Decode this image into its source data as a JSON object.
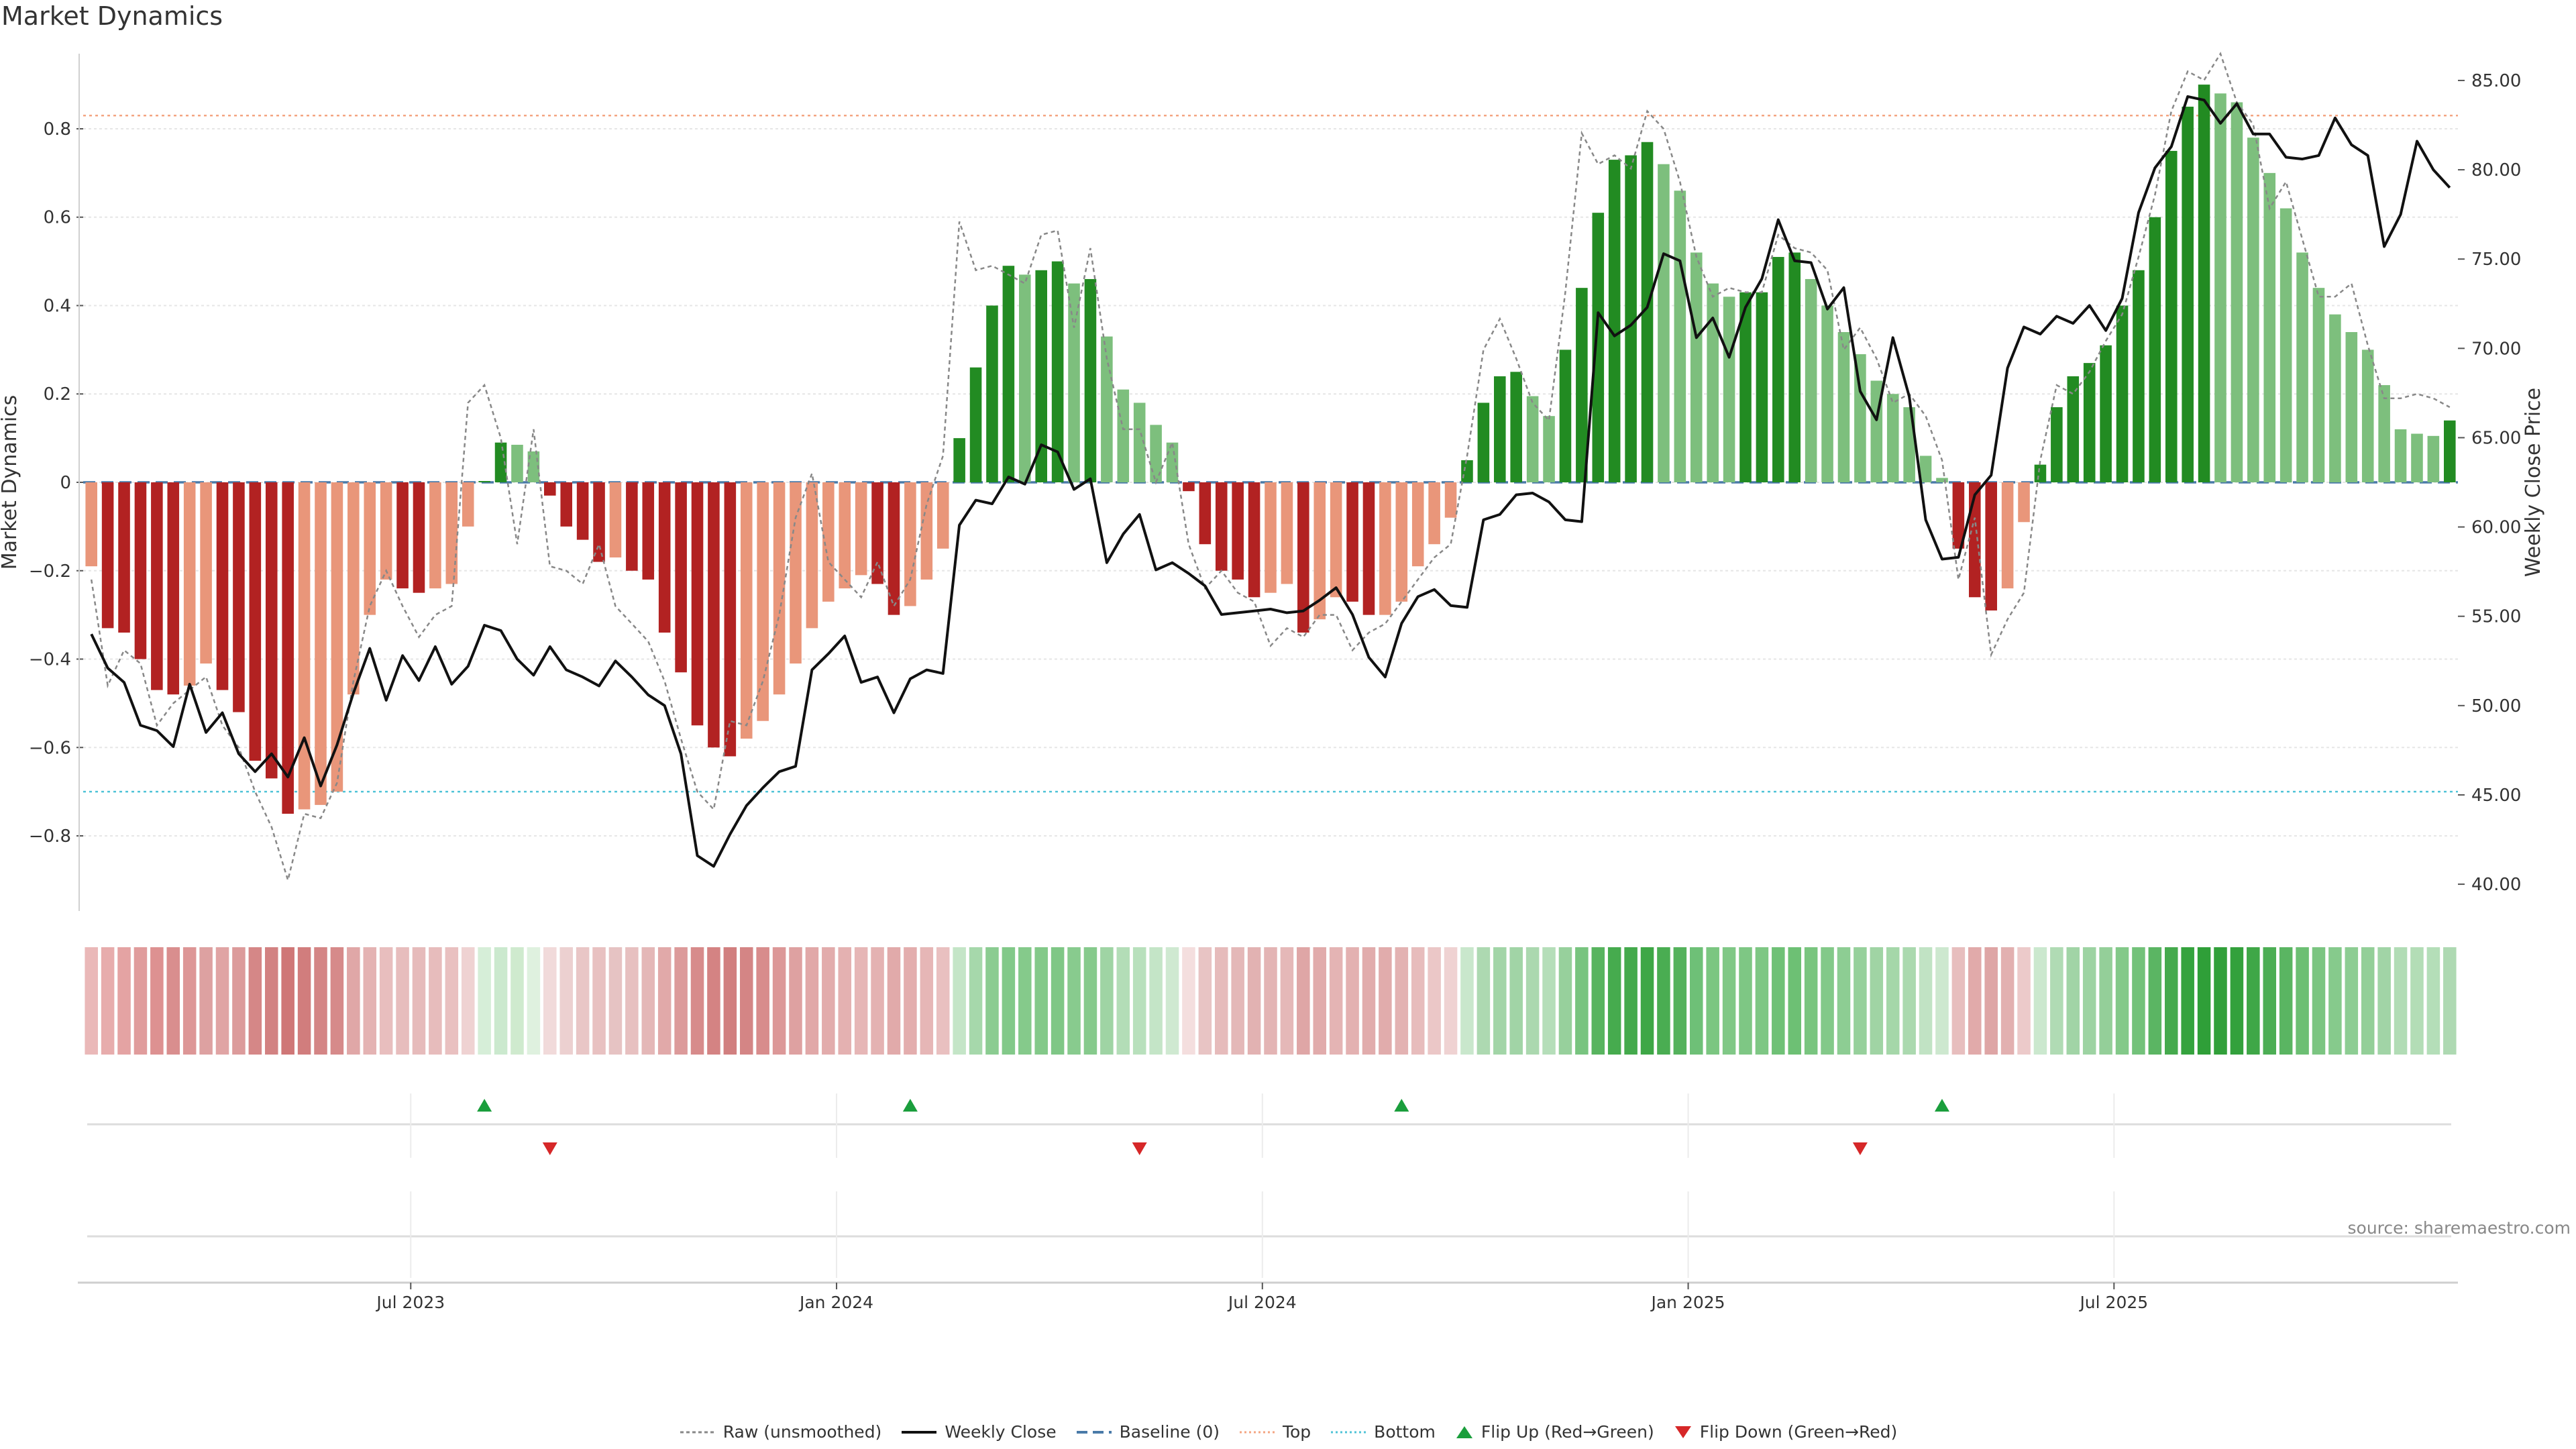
{
  "title": "Market Dynamics",
  "source": "source: sharemaestro.com",
  "colors": {
    "red_strong": "#b22222",
    "red_light": "#e9967a",
    "green_strong": "#228b22",
    "green_light": "#7dbf7d",
    "top_line": "#f4a582",
    "bottom_line": "#4fc3d7",
    "baseline": "#4a7aa8",
    "raw": "#888888",
    "close": "#111111",
    "flip_up": "#1a9e3c",
    "flip_down": "#d62728"
  },
  "legend": [
    {
      "key": "raw",
      "label": "Raw (unsmoothed)"
    },
    {
      "key": "close",
      "label": "Weekly Close"
    },
    {
      "key": "baseline",
      "label": "Baseline (0)"
    },
    {
      "key": "top",
      "label": "Top"
    },
    {
      "key": "bottom",
      "label": "Bottom"
    },
    {
      "key": "flip_up",
      "label": "Flip Up (Red→Green)"
    },
    {
      "key": "flip_down",
      "label": "Flip Down (Green→Red)"
    }
  ],
  "chart_data": {
    "type": "bar",
    "title": "Market Dynamics",
    "ylabel": "Market Dynamics",
    "y2label": "Weekly Close Price",
    "ylim": [
      -0.97,
      0.97
    ],
    "y2lim": [
      38.5,
      86.5
    ],
    "yticks": [
      0.8,
      0.6,
      0.4,
      0.2,
      0,
      -0.2,
      -0.4,
      -0.6,
      -0.8
    ],
    "ytick_labels": [
      "0.8",
      "0.6",
      "0.4",
      "0.2",
      "0",
      "−0.2",
      "−0.4",
      "−0.6",
      "−0.8"
    ],
    "y2ticks": [
      85,
      80,
      75,
      70,
      65,
      60,
      55,
      50,
      45,
      40
    ],
    "y2tick_labels": [
      "85.00",
      "80.00",
      "75.00",
      "70.00",
      "65.00",
      "60.00",
      "55.00",
      "50.00",
      "45.00",
      "40.00"
    ],
    "top_level": 0.83,
    "bottom_level": -0.7,
    "baseline": 0,
    "x_start": "2023-02-13",
    "x_week_step": 1,
    "xticks": [
      {
        "week": 20,
        "label": "Jul 2023"
      },
      {
        "week": 46,
        "label": "Jan 2024"
      },
      {
        "week": 72,
        "label": "Jul 2024"
      },
      {
        "week": 98,
        "label": "Jan 2025"
      },
      {
        "week": 124,
        "label": "Jul 2025"
      }
    ],
    "series": [
      {
        "name": "Market Dynamics (smoothed)",
        "type": "bar",
        "values": [
          -0.19,
          -0.33,
          -0.34,
          -0.4,
          -0.47,
          -0.48,
          -0.46,
          -0.41,
          -0.47,
          -0.52,
          -0.63,
          -0.67,
          -0.75,
          -0.74,
          -0.73,
          -0.7,
          -0.48,
          -0.3,
          -0.22,
          -0.24,
          -0.25,
          -0.24,
          -0.23,
          -0.1,
          0.003,
          0.09,
          0.085,
          0.07,
          -0.03,
          -0.1,
          -0.13,
          -0.18,
          -0.17,
          -0.2,
          -0.22,
          -0.34,
          -0.43,
          -0.55,
          -0.6,
          -0.62,
          -0.58,
          -0.54,
          -0.48,
          -0.41,
          -0.33,
          -0.27,
          -0.24,
          -0.21,
          -0.23,
          -0.3,
          -0.28,
          -0.22,
          -0.15,
          0.1,
          0.26,
          0.4,
          0.49,
          0.47,
          0.48,
          0.5,
          0.45,
          0.46,
          0.33,
          0.21,
          0.18,
          0.13,
          0.09,
          -0.02,
          -0.14,
          -0.2,
          -0.22,
          -0.26,
          -0.25,
          -0.23,
          -0.34,
          -0.31,
          -0.26,
          -0.27,
          -0.3,
          -0.3,
          -0.27,
          -0.19,
          -0.14,
          -0.08,
          0.05,
          0.18,
          0.24,
          0.25,
          0.195,
          0.15,
          0.3,
          0.44,
          0.61,
          0.73,
          0.74,
          0.77,
          0.72,
          0.66,
          0.52,
          0.45,
          0.42,
          0.43,
          0.43,
          0.51,
          0.52,
          0.46,
          0.4,
          0.34,
          0.29,
          0.23,
          0.2,
          0.17,
          0.06,
          0.01,
          -0.15,
          -0.26,
          -0.29,
          -0.24,
          -0.09,
          0.04,
          0.17,
          0.24,
          0.27,
          0.31,
          0.4,
          0.48,
          0.6,
          0.75,
          0.85,
          0.9,
          0.88,
          0.86,
          0.78,
          0.7,
          0.62,
          0.52,
          0.44,
          0.38,
          0.34,
          0.3,
          0.22,
          0.12,
          0.11,
          0.105,
          0.14
        ]
      },
      {
        "name": "Raw (unsmoothed)",
        "type": "line",
        "values": [
          -0.22,
          -0.46,
          -0.38,
          -0.41,
          -0.55,
          -0.5,
          -0.47,
          -0.44,
          -0.55,
          -0.6,
          -0.7,
          -0.78,
          -0.9,
          -0.75,
          -0.76,
          -0.68,
          -0.45,
          -0.28,
          -0.2,
          -0.28,
          -0.35,
          -0.3,
          -0.28,
          0.18,
          0.22,
          0.1,
          -0.14,
          0.12,
          -0.19,
          -0.2,
          -0.23,
          -0.14,
          -0.28,
          -0.32,
          -0.36,
          -0.45,
          -0.58,
          -0.7,
          -0.74,
          -0.54,
          -0.55,
          -0.45,
          -0.3,
          -0.08,
          0.02,
          -0.18,
          -0.22,
          -0.26,
          -0.18,
          -0.28,
          -0.22,
          -0.05,
          0.06,
          0.59,
          0.48,
          0.49,
          0.47,
          0.45,
          0.56,
          0.57,
          0.35,
          0.53,
          0.28,
          0.12,
          0.12,
          0.0,
          0.09,
          -0.14,
          -0.24,
          -0.2,
          -0.25,
          -0.27,
          -0.37,
          -0.33,
          -0.35,
          -0.3,
          -0.3,
          -0.38,
          -0.34,
          -0.32,
          -0.27,
          -0.22,
          -0.17,
          -0.14,
          0.06,
          0.3,
          0.37,
          0.28,
          0.18,
          0.14,
          0.43,
          0.79,
          0.72,
          0.74,
          0.71,
          0.84,
          0.8,
          0.68,
          0.51,
          0.42,
          0.44,
          0.43,
          0.43,
          0.56,
          0.53,
          0.52,
          0.48,
          0.3,
          0.35,
          0.28,
          0.18,
          0.2,
          0.15,
          0.05,
          -0.22,
          -0.08,
          -0.39,
          -0.31,
          -0.25,
          0.05,
          0.22,
          0.2,
          0.25,
          0.32,
          0.38,
          0.51,
          0.65,
          0.84,
          0.93,
          0.91,
          0.97,
          0.86,
          0.81,
          0.62,
          0.68,
          0.55,
          0.42,
          0.42,
          0.45,
          0.31,
          0.19,
          0.19,
          0.2,
          0.19,
          0.17
        ]
      },
      {
        "name": "Weekly Close",
        "type": "line",
        "axis": "right",
        "values": [
          54.0,
          52.1,
          51.3,
          48.9,
          48.6,
          47.7,
          51.2,
          48.5,
          49.6,
          47.3,
          46.3,
          47.3,
          46.0,
          48.2,
          45.5,
          47.8,
          50.7,
          53.2,
          50.3,
          52.8,
          51.4,
          53.3,
          51.2,
          52.2,
          54.5,
          54.2,
          52.6,
          51.7,
          53.3,
          52.0,
          51.6,
          51.1,
          52.5,
          51.6,
          50.6,
          50.0,
          47.3,
          41.6,
          41.0,
          42.8,
          44.4,
          45.4,
          46.3,
          46.6,
          52.0,
          52.9,
          53.9,
          51.3,
          51.6,
          49.6,
          51.5,
          52.0,
          51.8,
          60.1,
          61.5,
          61.3,
          62.8,
          62.4,
          64.6,
          64.2,
          62.1,
          62.7,
          58.0,
          59.6,
          60.7,
          57.6,
          58.0,
          57.4,
          56.7,
          55.1,
          55.2,
          55.3,
          55.4,
          55.2,
          55.3,
          55.9,
          56.6,
          55.1,
          52.7,
          51.6,
          54.6,
          56.1,
          56.5,
          55.6,
          55.5,
          60.4,
          60.7,
          61.8,
          61.9,
          61.4,
          60.4,
          60.3,
          72.0,
          70.7,
          71.3,
          72.3,
          75.3,
          74.9,
          70.6,
          71.7,
          69.5,
          72.3,
          73.9,
          77.2,
          74.9,
          74.8,
          72.2,
          73.4,
          67.6,
          66.0,
          70.6,
          67.3,
          60.4,
          58.2,
          58.3,
          61.8,
          62.9,
          68.9,
          71.2,
          70.8,
          71.8,
          71.4,
          72.4,
          71.0,
          72.8,
          77.6,
          80.1,
          81.3,
          84.1,
          83.9,
          82.6,
          83.7,
          82.0,
          82.0,
          80.7,
          80.6,
          80.8,
          82.9,
          81.4,
          80.8,
          75.7,
          77.5,
          81.6,
          80.0,
          79.0
        ]
      }
    ],
    "flips_up_weeks": [
      24,
      50,
      80,
      113
    ],
    "flips_down_weeks": [
      28,
      64,
      108
    ],
    "heatmap_colors": [
      "#eab8b8",
      "#e7acac",
      "#e4a3a3",
      "#e09c9c",
      "#dd9191",
      "#d98e8e",
      "#dd9696",
      "#dda1a1",
      "#e0a4a4",
      "#dc9b9b",
      "#d58787",
      "#d28282",
      "#cf7777",
      "#d17d7d",
      "#d48585",
      "#d68a8a",
      "#e0a7a7",
      "#e4b3b3",
      "#e8bebe",
      "#e7bdbd",
      "#e6bbbb",
      "#e7bcbc",
      "#e9c0c0",
      "#efd2d2",
      "#d6eed8",
      "#cbe9ce",
      "#cfeace",
      "#dff1df",
      "#f1dada",
      "#ecd0d0",
      "#e9c6c6",
      "#e8c1c1",
      "#e6c3c3",
      "#e7c0c0",
      "#e4b7b7",
      "#e1a9a9",
      "#dc9a9a",
      "#d78b8b",
      "#d48383",
      "#d17f7f",
      "#d48585",
      "#d88c8c",
      "#dc9898",
      "#dea1a1",
      "#e1a8a8",
      "#e2acac",
      "#e4b1b1",
      "#e6b6b6",
      "#e4b2b2",
      "#e1aaaa",
      "#e3adad",
      "#e6b6b6",
      "#e9c0c0",
      "#c4e5c7",
      "#a6d8ab",
      "#8bcc91",
      "#82c989",
      "#85ca8b",
      "#83c989",
      "#7fc786",
      "#88cb8e",
      "#86ca8c",
      "#9fd4a4",
      "#b3ddb7",
      "#b8e0bc",
      "#c4e5c7",
      "#cfe9d1",
      "#f4dede",
      "#e8c4c4",
      "#e6bbbb",
      "#e4b8b8",
      "#e2b2b2",
      "#e3b4b4",
      "#e5b8b8",
      "#dfa6a6",
      "#e1abab",
      "#e4b4b4",
      "#e3b1b1",
      "#e1acac",
      "#e1acac",
      "#e3b2b2",
      "#e7bcbc",
      "#ebc7c7",
      "#efd2d2",
      "#c9e7cc",
      "#add9b1",
      "#a2d5a7",
      "#a1d4a6",
      "#abd8af",
      "#b5deb9",
      "#97d09c",
      "#78c47f",
      "#58b45f",
      "#46ab4e",
      "#44aa4c",
      "#3ea746",
      "#4aad52",
      "#54b25c",
      "#6ec077",
      "#7bc681",
      "#80c886",
      "#7ec784",
      "#7ec784",
      "#6fc176",
      "#6dc074",
      "#79c57f",
      "#83c989",
      "#8dcd93",
      "#96d09b",
      "#a0d4a4",
      "#a5d7a9",
      "#abd9af",
      "#c1e3c4",
      "#cde8cf",
      "#e7bebe",
      "#e1aaaa",
      "#dea5a5",
      "#e2b0b0",
      "#eccaca",
      "#cbe8ce",
      "#b0dbb4",
      "#a1d4a6",
      "#9dd3a2",
      "#94cf99",
      "#83c989",
      "#73c27a",
      "#5bb563",
      "#45aa4d",
      "#35a33e",
      "#2f9f38",
      "#31a03a",
      "#33a13c",
      "#3fa747",
      "#4cae54",
      "#5ab562",
      "#6cbf73",
      "#7bc581",
      "#86ca8c",
      "#8dcd93",
      "#93cf98",
      "#a1d4a6",
      "#b1dcb5",
      "#b3ddb6",
      "#b4deb8",
      "#aed9b2"
    ]
  }
}
